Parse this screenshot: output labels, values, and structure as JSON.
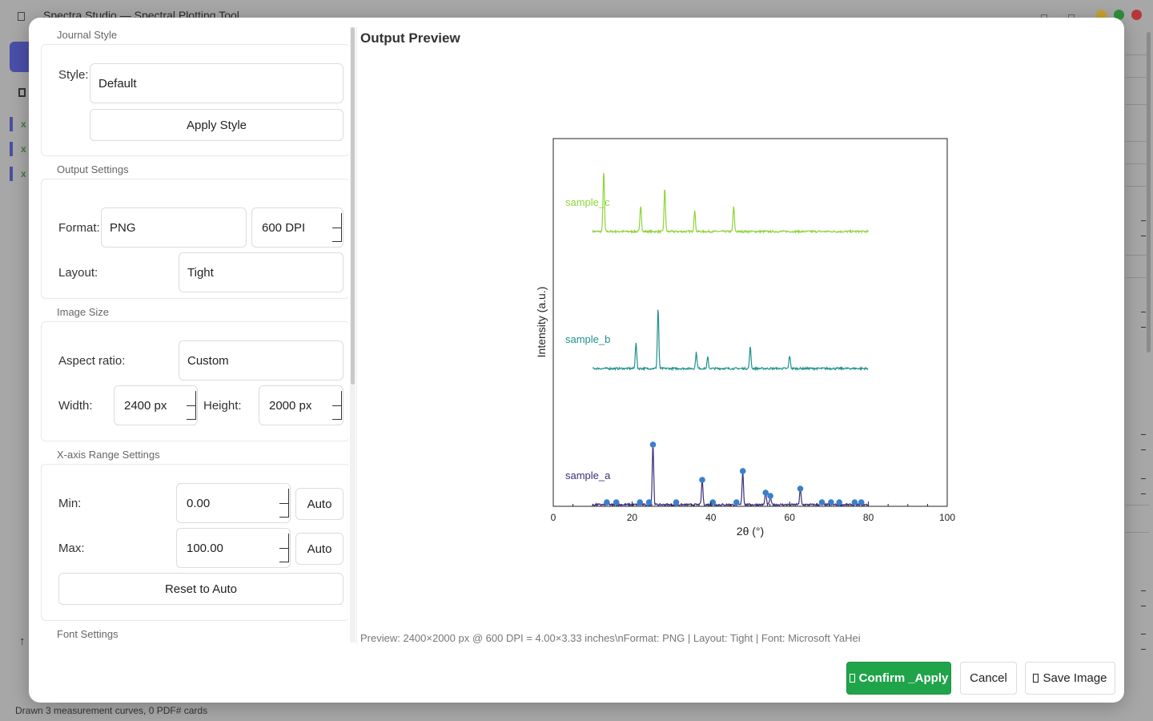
{
  "app": {
    "title": "Spectra Studio — Spectral Plotting Tool",
    "status": "Drawn 3 measurement curves, 0 PDF# cards",
    "sidebar_items": [
      "x",
      "x",
      "x"
    ]
  },
  "dialog": {
    "journal_style": {
      "section": "Journal Style",
      "style_label": "Style:",
      "style_value": "Default",
      "apply_label": "Apply Style"
    },
    "output_settings": {
      "section": "Output Settings",
      "format_label": "Format:",
      "format_value": "PNG",
      "dpi_value": "600 DPI",
      "layout_label": "Layout:",
      "layout_value": "Tight"
    },
    "image_size": {
      "section": "Image Size",
      "aspect_label": "Aspect ratio:",
      "aspect_value": "Custom",
      "width_label": "Width:",
      "width_value": "2400 px",
      "height_label": "Height:",
      "height_value": "2000 px"
    },
    "x_axis_range": {
      "section": "X-axis Range Settings",
      "min_label": "Min:",
      "min_value": "0.00",
      "max_label": "Max:",
      "max_value": "100.00",
      "auto_label": "Auto",
      "reset_label": "Reset to Auto"
    },
    "font_settings": {
      "section": "Font Settings"
    },
    "preview": {
      "title": "Output Preview",
      "info": "Preview: 2400×2000 px @ 600 DPI = 4.00×3.33 inches\\nFormat: PNG | Layout: Tight | Font: Microsoft YaHei"
    },
    "footer": {
      "confirm_label": "Confirm _Apply",
      "cancel_label": "Cancel",
      "save_label": "Save Image"
    }
  },
  "chart_data": {
    "type": "line",
    "xlabel": "2θ (°)",
    "ylabel": "Intensity (a.u.)",
    "xlim": [
      0,
      100
    ],
    "xticks": [
      0,
      20,
      40,
      60,
      80,
      100
    ],
    "grid": false,
    "x_range_of_data": [
      10,
      80
    ],
    "series": [
      {
        "name": "sample_c",
        "color": "#8fd43a",
        "peaks": [
          [
            12.8,
            75
          ],
          [
            22.2,
            33
          ],
          [
            28.3,
            54
          ],
          [
            35.9,
            26
          ],
          [
            45.8,
            31
          ]
        ]
      },
      {
        "name": "sample_b",
        "color": "#21918c",
        "peaks": [
          [
            21.0,
            32
          ],
          [
            26.6,
            75
          ],
          [
            36.3,
            20
          ],
          [
            39.2,
            14
          ],
          [
            50.0,
            27
          ],
          [
            60.0,
            16
          ]
        ]
      },
      {
        "name": "sample_a",
        "color": "#3b2f7a",
        "peaks": [
          [
            25.3,
            75
          ],
          [
            37.8,
            31
          ],
          [
            48.1,
            42
          ],
          [
            53.9,
            15
          ],
          [
            55.1,
            11
          ],
          [
            62.7,
            20
          ]
        ],
        "markers": {
          "color": "#3a7fcc",
          "positions": [
            [
              13.6,
              3
            ],
            [
              16.0,
              3
            ],
            [
              22.0,
              3
            ],
            [
              24.3,
              3
            ],
            [
              25.3,
              75
            ],
            [
              31.2,
              3
            ],
            [
              37.8,
              31
            ],
            [
              40.5,
              3
            ],
            [
              46.5,
              3
            ],
            [
              48.1,
              42
            ],
            [
              53.9,
              15
            ],
            [
              55.1,
              11
            ],
            [
              62.7,
              20
            ],
            [
              68.2,
              3
            ],
            [
              70.5,
              3
            ],
            [
              72.6,
              3
            ],
            [
              76.5,
              3
            ],
            [
              78.2,
              3
            ]
          ]
        }
      }
    ]
  }
}
